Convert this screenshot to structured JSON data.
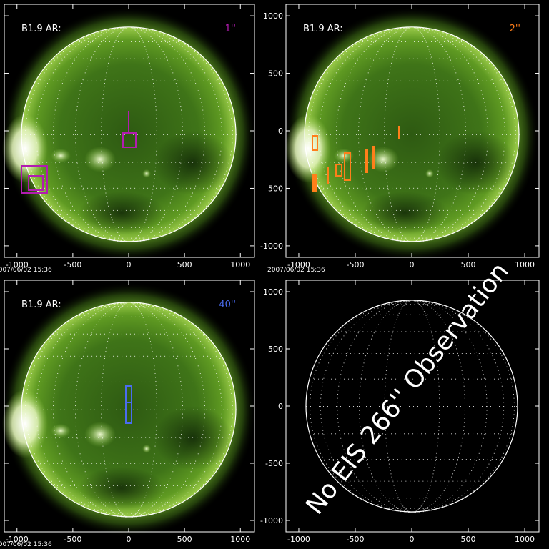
{
  "timestamp": "2007/06/02 15:36",
  "header_label": "B1.9  AR:",
  "x_ticks": [
    "-1000",
    "-500",
    "0",
    "500",
    "1000"
  ],
  "y_ticks": [
    "1000",
    "500",
    "0",
    "-500",
    "-1000"
  ],
  "panels": [
    {
      "id": "tl",
      "scale_label": "1''",
      "scale_color": "#b21cb0",
      "has_sun": true
    },
    {
      "id": "tr",
      "scale_label": "2''",
      "scale_color": "#ff7f1a",
      "has_sun": true
    },
    {
      "id": "bl",
      "scale_label": "40''",
      "scale_color": "#4a6cf0",
      "has_sun": true
    },
    {
      "id": "br",
      "scale_label": "",
      "scale_color": "#ffffff",
      "has_sun": false
    }
  ],
  "no_observation_text": "No EIS 266'' Observation",
  "colors": {
    "background": "#000000",
    "sun_core": "#5a8a1e",
    "sun_limb": "#c8e88a",
    "grid": "#ffffff"
  }
}
